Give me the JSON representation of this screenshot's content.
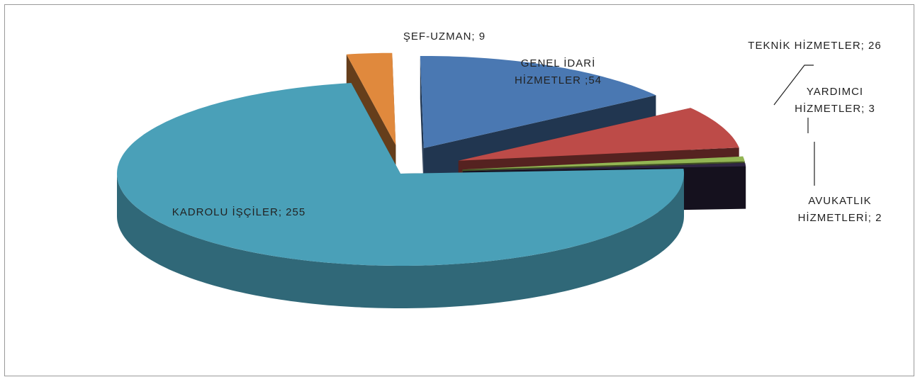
{
  "chart_data": {
    "type": "pie",
    "categories": [
      "ŞEF-UZMAN",
      "GENEL İDARİ HİZMETLER",
      "TEKNİK HİZMETLER",
      "YARDIMCI HİZMETLER",
      "AVUKATLIK HİZMETLERİ",
      "KADROLU İŞÇİLER"
    ],
    "values": [
      9,
      54,
      26,
      3,
      2,
      255
    ],
    "value_labels": [
      "; 9",
      " ;54",
      "; 26",
      "; 3",
      "; 2",
      "; 255"
    ],
    "colors": [
      "#e0893d",
      "#4a78b2",
      "#bd4b48",
      "#93b553",
      "#2f2542",
      "#4aa0b8"
    ]
  }
}
